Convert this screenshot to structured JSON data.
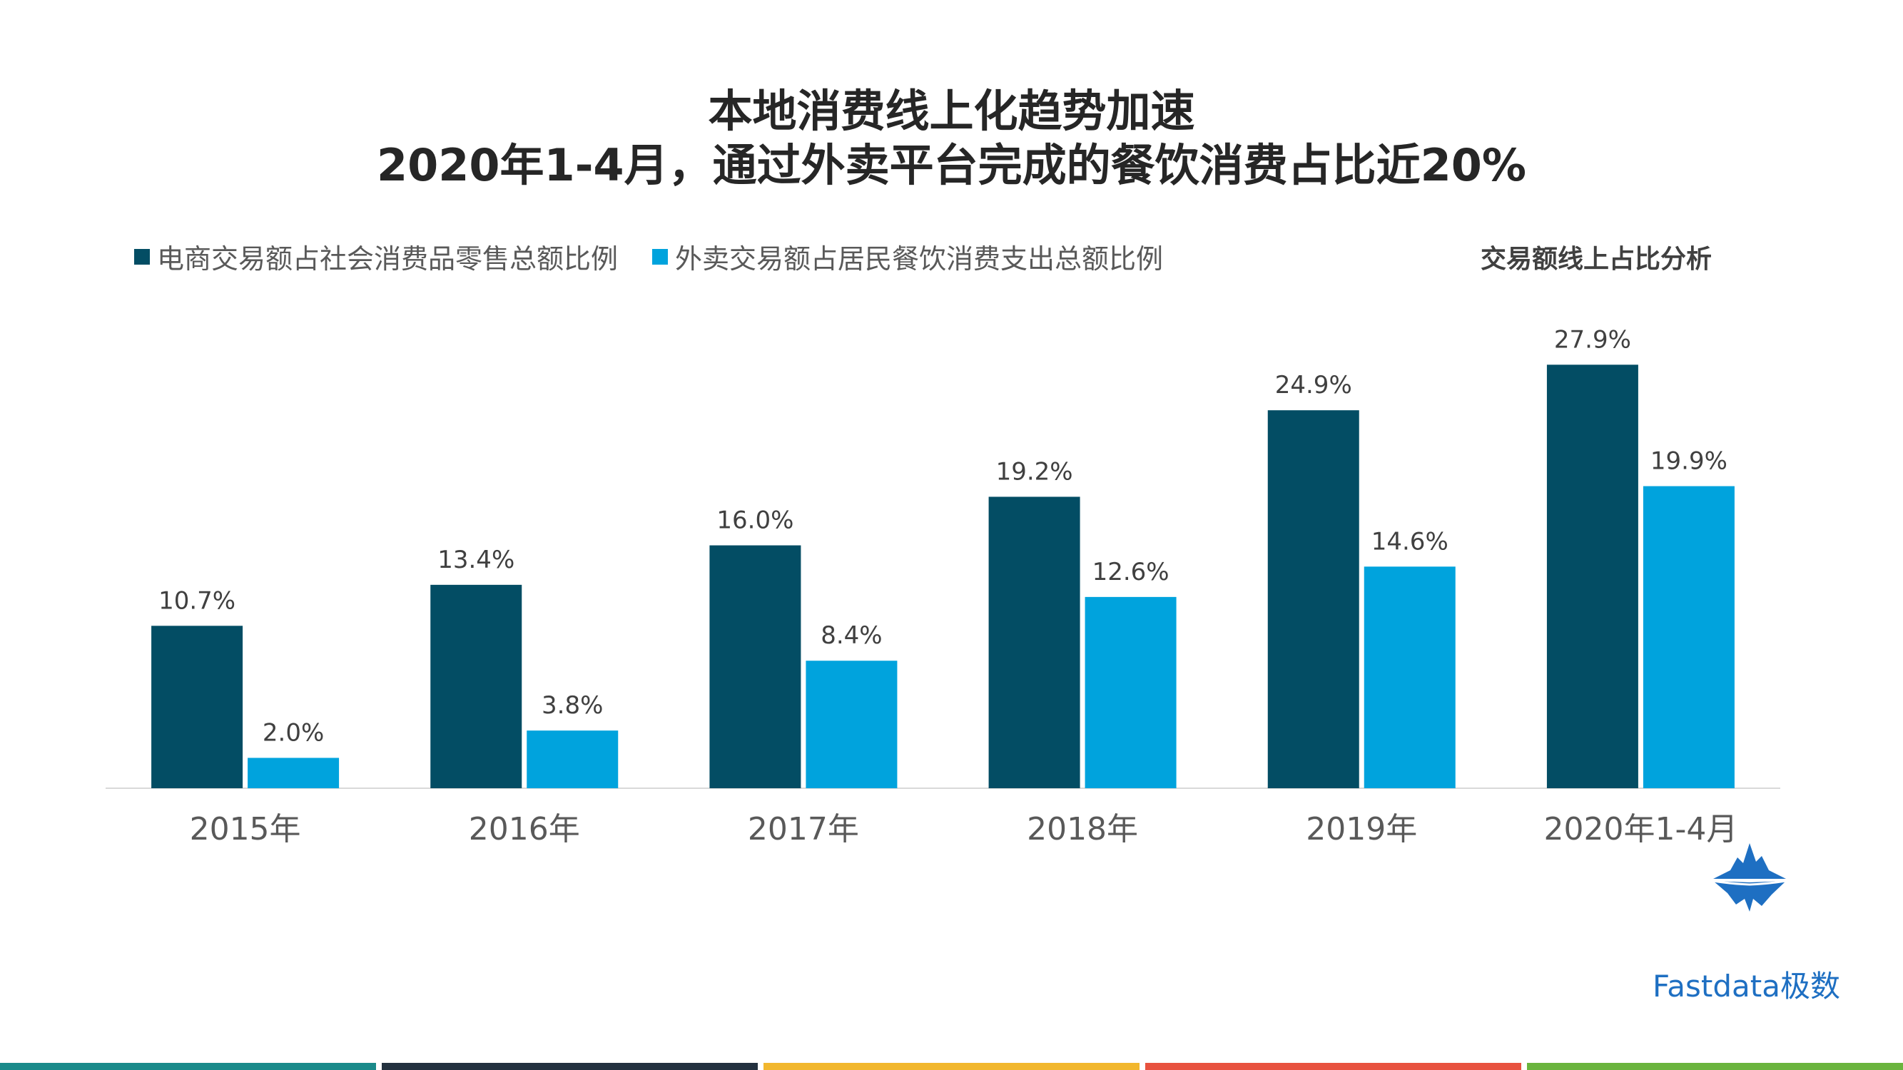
{
  "header": {
    "title_line1": "本地消费线上化趋势加速",
    "title_line2": "2020年1-4月，通过外卖平台完成的餐饮消费占比近20%"
  },
  "section_label": "交易额线上占比分析",
  "brand": {
    "name": "Fastdata极数",
    "logo_icon": "iceberg-logo-icon",
    "color": "#1e6fc2"
  },
  "footer_colors": [
    "#1a8a8a",
    "#23313f",
    "#f2b72e",
    "#e8523f",
    "#6ab43e"
  ],
  "chart_data": {
    "type": "bar",
    "categories": [
      "2015年",
      "2016年",
      "2017年",
      "2018年",
      "2019年",
      "2020年1-4月"
    ],
    "series": [
      {
        "name": "电商交易额占社会消费品零售总额比例",
        "color": "#034d64",
        "values": [
          10.7,
          13.4,
          16.0,
          19.2,
          24.9,
          27.9
        ],
        "labels": [
          "10.7%",
          "13.4%",
          "16.0%",
          "19.2%",
          "24.9%",
          "27.9%"
        ]
      },
      {
        "name": "外卖交易额占居民餐饮消费支出总额比例",
        "color": "#00a3dd",
        "values": [
          2.0,
          3.8,
          8.4,
          12.6,
          14.6,
          19.9
        ],
        "labels": [
          "2.0%",
          "3.8%",
          "8.4%",
          "12.6%",
          "14.6%",
          "19.9%"
        ]
      }
    ],
    "ylim": [
      0,
      30
    ],
    "grid": false,
    "legend_position": "top-left"
  }
}
